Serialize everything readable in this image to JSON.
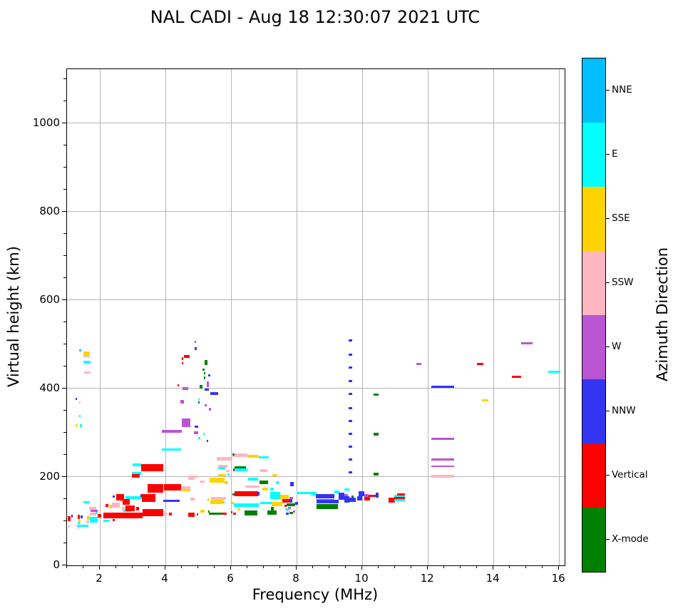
{
  "chart_data": {
    "type": "scatter",
    "title": "NAL CADI - Aug 18 12:30:07 2021 UTC",
    "xlabel": "Frequency (MHz)",
    "ylabel": "Virtual height (km)",
    "xlim": [
      1.0,
      16.17
    ],
    "ylim": [
      0,
      1122
    ],
    "xticks": [
      2,
      4,
      6,
      8,
      10,
      12,
      14,
      16
    ],
    "yticks": [
      0,
      200,
      400,
      600,
      800,
      1000
    ],
    "xminor_step": 0.5,
    "yminor_step": 50,
    "grid": true,
    "colorbar": {
      "label": "Azimuth Direction",
      "categories": [
        {
          "name": "NNE",
          "color": "#00BFFF"
        },
        {
          "name": "E",
          "color": "#00FFFF"
        },
        {
          "name": "SSE",
          "color": "#FFD300"
        },
        {
          "name": "SSW",
          "color": "#FFB6C1"
        },
        {
          "name": "W",
          "color": "#BA55D3"
        },
        {
          "name": "NNW",
          "color": "#3434F3"
        },
        {
          "name": "Vertical",
          "color": "#FF0000"
        },
        {
          "name": "X-mode",
          "color": "#008000"
        }
      ]
    },
    "direction_colors": {
      "NNE": "#00BFFF",
      "E": "#00FFFF",
      "SSE": "#FFD300",
      "SSW": "#FFB6C1",
      "W": "#BA55D3",
      "NNW": "#3434F3",
      "V": "#FF0000",
      "X": "#008000"
    },
    "segments_format": [
      "freq_start_MHz",
      "freq_end_MHz",
      "virtual_height_km",
      "direction",
      "thickness_km"
    ],
    "segments": [
      [
        1.02,
        1.1,
        106,
        "V",
        12
      ],
      [
        1.13,
        1.17,
        111,
        "NNW",
        6
      ],
      [
        1.05,
        1.09,
        88,
        "SSW",
        5
      ],
      [
        1.33,
        1.4,
        109,
        "V",
        10
      ],
      [
        1.42,
        1.47,
        110,
        "NNW",
        6
      ],
      [
        1.35,
        1.42,
        100,
        "SSE",
        6
      ],
      [
        1.33,
        1.4,
        96,
        "E",
        5
      ],
      [
        1.3,
        1.65,
        90,
        "E",
        5
      ],
      [
        1.33,
        1.38,
        84,
        "SSW",
        5
      ],
      [
        1.58,
        1.67,
        98,
        "SSW",
        6
      ],
      [
        1.6,
        1.7,
        107,
        "SSE",
        8
      ],
      [
        1.7,
        1.93,
        103,
        "E",
        14
      ],
      [
        1.93,
        2.04,
        112,
        "V",
        9
      ],
      [
        1.5,
        1.7,
        143,
        "E",
        5
      ],
      [
        1.72,
        1.93,
        124,
        "W",
        5
      ],
      [
        1.7,
        1.9,
        116,
        "SSW",
        6
      ],
      [
        1.67,
        1.9,
        129,
        "SSW",
        5
      ],
      [
        1.87,
        1.94,
        119,
        "E",
        5
      ],
      [
        1.38,
        1.43,
        486,
        "NNE",
        5
      ],
      [
        1.5,
        1.7,
        480,
        "SSE",
        8
      ],
      [
        1.5,
        1.7,
        473,
        "SSW",
        5
      ],
      [
        1.5,
        1.72,
        460,
        "E",
        6
      ],
      [
        1.52,
        1.72,
        436,
        "SSW",
        5
      ],
      [
        1.25,
        1.29,
        377,
        "NNW",
        5
      ],
      [
        1.38,
        1.42,
        369,
        "SSW",
        5
      ],
      [
        1.38,
        1.42,
        338,
        "E",
        5
      ],
      [
        1.25,
        1.29,
        316,
        "SSE",
        5
      ],
      [
        1.4,
        1.45,
        316,
        "E",
        5
      ],
      [
        2.1,
        2.34,
        113,
        "V",
        14
      ],
      [
        2.29,
        2.36,
        133,
        "SSE",
        7
      ],
      [
        2.17,
        2.27,
        135,
        "V",
        7
      ],
      [
        2.36,
        2.6,
        136,
        "SSW",
        11
      ],
      [
        2.63,
        2.8,
        147,
        "SSW",
        6
      ],
      [
        2.4,
        2.45,
        103,
        "V",
        5
      ],
      [
        2.1,
        2.3,
        101,
        "E",
        5
      ],
      [
        2.1,
        3.3,
        113,
        "V",
        12
      ],
      [
        3.3,
        3.93,
        119,
        "V",
        16
      ],
      [
        3.96,
        4.04,
        116,
        "SSW",
        7
      ],
      [
        4.1,
        4.2,
        116,
        "V",
        7
      ],
      [
        4.7,
        4.88,
        114,
        "V",
        9
      ],
      [
        4.95,
        5.0,
        115,
        "V",
        5
      ],
      [
        2.4,
        2.45,
        155,
        "NNW",
        5
      ],
      [
        2.5,
        2.74,
        154,
        "V",
        13
      ],
      [
        2.78,
        3.3,
        153,
        "E",
        6
      ],
      [
        2.7,
        2.92,
        144,
        "V",
        13
      ],
      [
        2.67,
        2.9,
        128,
        "SSW",
        9
      ],
      [
        2.72,
        2.95,
        124,
        "E",
        5
      ],
      [
        2.78,
        3.07,
        129,
        "V",
        12
      ],
      [
        3.1,
        3.2,
        128,
        "V",
        7
      ],
      [
        3.23,
        3.28,
        158,
        "NNW",
        5
      ],
      [
        3.28,
        3.7,
        153,
        "V",
        18
      ],
      [
        3.45,
        3.93,
        174,
        "V",
        19
      ],
      [
        3.95,
        4.48,
        177,
        "V",
        14
      ],
      [
        4.5,
        4.77,
        176,
        "SSW",
        7
      ],
      [
        4.5,
        4.77,
        170,
        "SSE",
        6
      ],
      [
        3.93,
        4.44,
        146,
        "NNW",
        5
      ],
      [
        2.97,
        3.26,
        208,
        "E",
        6
      ],
      [
        2.97,
        3.22,
        203,
        "V",
        8
      ],
      [
        3.25,
        3.93,
        221,
        "V",
        17
      ],
      [
        3.0,
        3.25,
        227,
        "E",
        6
      ],
      [
        3.9,
        4.5,
        303,
        "W",
        7
      ],
      [
        4.5,
        4.77,
        322,
        "W",
        20
      ],
      [
        4.87,
        5.0,
        300,
        "W",
        6
      ],
      [
        3.9,
        4.48,
        262,
        "E",
        5
      ],
      [
        4.51,
        4.7,
        400,
        "W",
        6
      ],
      [
        4.46,
        4.56,
        370,
        "W",
        8
      ],
      [
        4.36,
        4.41,
        407,
        "V",
        5
      ],
      [
        4.49,
        4.54,
        468,
        "V",
        6
      ],
      [
        4.5,
        4.54,
        457,
        "V",
        5
      ],
      [
        4.56,
        4.74,
        472,
        "V",
        7
      ],
      [
        4.88,
        4.94,
        505,
        "W",
        5
      ],
      [
        4.88,
        4.96,
        490,
        "NNW",
        5
      ],
      [
        4.9,
        5.0,
        313,
        "NNW",
        5
      ],
      [
        5.15,
        5.2,
        297,
        "E",
        5
      ],
      [
        5.0,
        5.06,
        288,
        "E",
        5
      ],
      [
        5.25,
        5.3,
        281,
        "NNW",
        5
      ],
      [
        5.2,
        5.28,
        458,
        "X",
        11
      ],
      [
        5.14,
        5.2,
        442,
        "X",
        5
      ],
      [
        5.17,
        5.22,
        434,
        "X",
        5
      ],
      [
        5.3,
        5.37,
        430,
        "NNW",
        5
      ],
      [
        5.17,
        5.22,
        424,
        "X",
        5
      ],
      [
        5.27,
        5.32,
        409,
        "W",
        13
      ],
      [
        5.05,
        5.14,
        404,
        "X",
        9
      ],
      [
        5.2,
        5.32,
        397,
        "NNW",
        5
      ],
      [
        5.37,
        5.6,
        389,
        "NNW",
        6
      ],
      [
        5.0,
        5.05,
        375,
        "E",
        5
      ],
      [
        5.0,
        5.05,
        369,
        "X",
        5
      ],
      [
        5.2,
        5.25,
        362,
        "W",
        5
      ],
      [
        5.33,
        5.38,
        353,
        "W",
        5
      ],
      [
        5.57,
        6.04,
        241,
        "SSW",
        9
      ],
      [
        6.04,
        6.5,
        249,
        "SSW",
        9
      ],
      [
        6.5,
        6.85,
        247,
        "SSE",
        6
      ],
      [
        6.85,
        7.15,
        244,
        "E",
        6
      ],
      [
        6.05,
        6.1,
        251,
        "X",
        5
      ],
      [
        5.6,
        5.9,
        224,
        "SSW",
        6
      ],
      [
        5.6,
        5.83,
        220,
        "E",
        5
      ],
      [
        6.1,
        6.45,
        220,
        "X",
        8
      ],
      [
        6.1,
        6.5,
        216,
        "E",
        5
      ],
      [
        6.06,
        6.1,
        216,
        "V",
        5
      ],
      [
        6.9,
        7.1,
        214,
        "SSW",
        6
      ],
      [
        5.85,
        5.95,
        214,
        "SSW",
        5
      ],
      [
        5.6,
        5.85,
        204,
        "SSE",
        6
      ],
      [
        5.88,
        5.95,
        205,
        "E",
        5
      ],
      [
        7.25,
        7.42,
        204,
        "SSE",
        6
      ],
      [
        4.7,
        5.0,
        200,
        "SSW",
        5
      ],
      [
        4.7,
        4.9,
        196,
        "SSW",
        6
      ],
      [
        5.35,
        5.8,
        193,
        "SSE",
        11
      ],
      [
        5.8,
        5.92,
        187,
        "SSE",
        7
      ],
      [
        5.05,
        5.2,
        190,
        "SSW",
        5
      ],
      [
        6.52,
        6.83,
        195,
        "E",
        6
      ],
      [
        6.87,
        7.12,
        188,
        "X",
        8
      ],
      [
        7.37,
        7.45,
        187,
        "E",
        5
      ],
      [
        7.8,
        7.92,
        184,
        "NNW",
        9
      ],
      [
        6.43,
        6.87,
        178,
        "SSW",
        6
      ],
      [
        6.95,
        7.12,
        172,
        "SSE",
        6
      ],
      [
        7.2,
        7.3,
        172,
        "E",
        6
      ],
      [
        6.1,
        6.83,
        162,
        "V",
        10
      ],
      [
        6.8,
        6.87,
        162,
        "NNW",
        8
      ],
      [
        6.05,
        6.1,
        161,
        "X",
        5
      ],
      [
        7.2,
        7.5,
        158,
        "E",
        16
      ],
      [
        7.5,
        7.76,
        154,
        "SSE",
        10
      ],
      [
        7.56,
        7.8,
        146,
        "V",
        8
      ],
      [
        7.77,
        7.87,
        146,
        "NNW",
        8
      ],
      [
        7.77,
        7.9,
        153,
        "W",
        5
      ],
      [
        7.99,
        8.6,
        163,
        "E",
        5
      ],
      [
        5.4,
        5.85,
        151,
        "SSW",
        7
      ],
      [
        5.4,
        5.76,
        144,
        "SSE",
        10
      ],
      [
        4.75,
        4.9,
        150,
        "SSW",
        6
      ],
      [
        5.28,
        5.33,
        148,
        "SSE",
        6
      ],
      [
        6.08,
        6.84,
        136,
        "E",
        7
      ],
      [
        6.9,
        7.24,
        141,
        "E",
        6
      ],
      [
        7.24,
        7.57,
        138,
        "SSE",
        10
      ],
      [
        7.62,
        7.7,
        135,
        "V",
        5
      ],
      [
        7.7,
        7.95,
        137,
        "X",
        7
      ],
      [
        7.95,
        8.04,
        140,
        "NNW",
        6
      ],
      [
        7.73,
        7.83,
        130,
        "W",
        5
      ],
      [
        7.66,
        7.78,
        127,
        "E",
        5
      ],
      [
        6.03,
        6.08,
        141,
        "SSE",
        5
      ],
      [
        5.75,
        5.8,
        143,
        "E",
        5
      ],
      [
        5.36,
        5.56,
        142,
        "SSE",
        6
      ],
      [
        5.07,
        5.2,
        122,
        "SSE",
        6
      ],
      [
        5.3,
        5.35,
        121,
        "X",
        5
      ],
      [
        6.0,
        6.05,
        120,
        "V",
        6
      ],
      [
        5.32,
        5.74,
        117,
        "X",
        6
      ],
      [
        5.74,
        5.87,
        117,
        "V",
        6
      ],
      [
        6.07,
        6.16,
        117,
        "V",
        6
      ],
      [
        6.41,
        6.81,
        118,
        "X",
        11
      ],
      [
        7.1,
        7.4,
        119,
        "X",
        10
      ],
      [
        7.22,
        7.31,
        124,
        "X",
        16
      ],
      [
        7.68,
        7.75,
        117,
        "NNW",
        5
      ],
      [
        7.77,
        7.88,
        118,
        "X",
        5
      ],
      [
        7.7,
        7.78,
        123,
        "SSW",
        5
      ],
      [
        7.88,
        7.95,
        121,
        "W",
        5
      ],
      [
        6.2,
        6.28,
        127,
        "SSE",
        5
      ],
      [
        8.43,
        8.58,
        160,
        "E",
        5
      ],
      [
        8.58,
        9.16,
        156,
        "NNW",
        9
      ],
      [
        8.6,
        9.16,
        148,
        "W",
        5
      ],
      [
        8.6,
        9.27,
        144,
        "NNW",
        8
      ],
      [
        8.6,
        9.25,
        133,
        "X",
        12
      ],
      [
        9.15,
        9.3,
        166,
        "E",
        5
      ],
      [
        9.27,
        9.45,
        157,
        "NNW",
        16
      ],
      [
        9.45,
        9.6,
        171,
        "E",
        5
      ],
      [
        9.45,
        9.56,
        159,
        "W",
        5
      ],
      [
        9.45,
        9.6,
        149,
        "NNW",
        15
      ],
      [
        9.68,
        9.74,
        155,
        "X",
        7
      ],
      [
        9.6,
        9.8,
        148,
        "NNW",
        9
      ],
      [
        9.88,
        10.06,
        162,
        "NNW",
        11
      ],
      [
        9.85,
        10.0,
        152,
        "NNW",
        10
      ],
      [
        10.06,
        10.2,
        158,
        "W",
        6
      ],
      [
        10.06,
        10.23,
        151,
        "V",
        8
      ],
      [
        10.2,
        10.45,
        157,
        "V",
        6
      ],
      [
        10.4,
        10.5,
        159,
        "NNW",
        12
      ],
      [
        10.8,
        11.0,
        147,
        "V",
        11
      ],
      [
        10.97,
        11.3,
        157,
        "E",
        5
      ],
      [
        10.97,
        11.3,
        152,
        "V",
        5
      ],
      [
        10.97,
        11.3,
        147,
        "E",
        5
      ],
      [
        11.07,
        11.3,
        161,
        "V",
        5
      ],
      [
        9.58,
        9.7,
        508,
        "NNW",
        5
      ],
      [
        9.58,
        9.7,
        476,
        "NNW",
        5
      ],
      [
        9.58,
        9.7,
        447,
        "NNW",
        5
      ],
      [
        9.58,
        9.7,
        416,
        "NNW",
        5
      ],
      [
        9.58,
        9.7,
        387,
        "NNW",
        5
      ],
      [
        9.58,
        9.7,
        356,
        "NNW",
        5
      ],
      [
        9.58,
        9.7,
        327,
        "NNW",
        5
      ],
      [
        9.58,
        9.7,
        298,
        "NNW",
        5
      ],
      [
        9.58,
        9.7,
        268,
        "NNW",
        5
      ],
      [
        9.58,
        9.7,
        239,
        "NNW",
        5
      ],
      [
        9.58,
        9.7,
        210,
        "NNW",
        5
      ],
      [
        10.35,
        10.5,
        386,
        "X",
        6
      ],
      [
        10.35,
        10.5,
        297,
        "X",
        6
      ],
      [
        10.35,
        10.5,
        206,
        "X",
        6
      ],
      [
        12.1,
        12.8,
        404,
        "NNW",
        5
      ],
      [
        12.1,
        12.8,
        286,
        "W",
        5
      ],
      [
        12.1,
        12.8,
        240,
        "W",
        5
      ],
      [
        12.1,
        12.8,
        224,
        "W",
        3
      ],
      [
        12.1,
        12.8,
        201,
        "SSW",
        6
      ],
      [
        11.65,
        11.8,
        456,
        "W",
        5
      ],
      [
        13.5,
        13.7,
        456,
        "V",
        5
      ],
      [
        13.65,
        13.85,
        373,
        "SSE",
        5
      ],
      [
        14.57,
        14.85,
        427,
        "V",
        5
      ],
      [
        14.85,
        15.2,
        502,
        "W",
        5
      ],
      [
        15.68,
        16.05,
        437,
        "E",
        5
      ]
    ]
  }
}
